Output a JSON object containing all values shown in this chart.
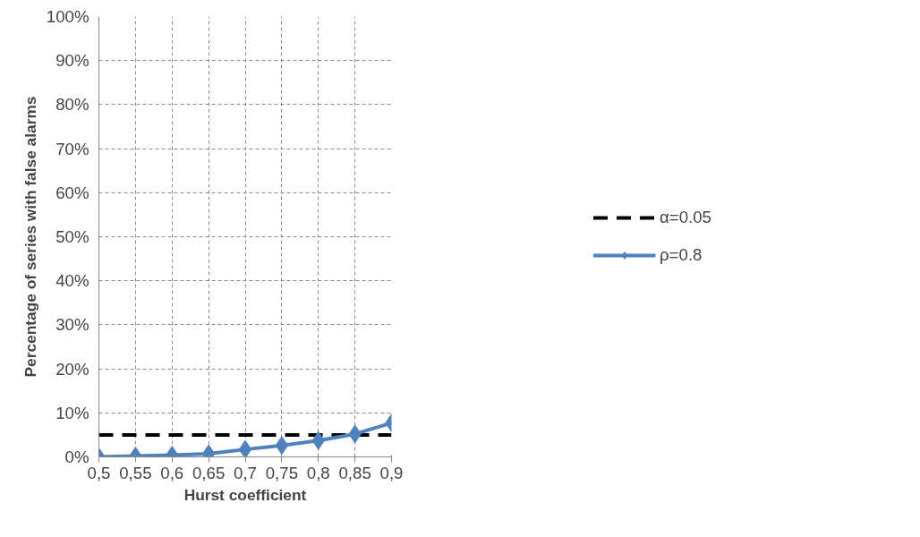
{
  "chart_data": {
    "type": "line",
    "xlabel": "Hurst coefficient",
    "ylabel": "Percentage of series with false alarms",
    "categories": [
      "0,5",
      "0,55",
      "0,6",
      "0,65",
      "0,7",
      "0,75",
      "0,8",
      "0,85",
      "0,9"
    ],
    "ylim": [
      0,
      100
    ],
    "yticks": [
      {
        "value": 0,
        "label": "0%"
      },
      {
        "value": 10,
        "label": "10%"
      },
      {
        "value": 20,
        "label": "20%"
      },
      {
        "value": 30,
        "label": "30%"
      },
      {
        "value": 40,
        "label": "40%"
      },
      {
        "value": 50,
        "label": "50%"
      },
      {
        "value": 60,
        "label": "60%"
      },
      {
        "value": 70,
        "label": "70%"
      },
      {
        "value": 80,
        "label": "80%"
      },
      {
        "value": 90,
        "label": "90%"
      },
      {
        "value": 100,
        "label": "100%"
      }
    ],
    "grid": true,
    "legend": "right",
    "series": [
      {
        "name": "α=0.05",
        "color": "#000000",
        "line_style": "dashed",
        "marker": "none",
        "values": [
          5,
          5,
          5,
          5,
          5,
          5,
          5,
          5,
          5
        ]
      },
      {
        "name": "ρ=0.8",
        "color": "#4f81bd",
        "line_style": "solid",
        "marker": "diamond",
        "values": [
          0,
          0.2,
          0.4,
          0.7,
          1.7,
          2.6,
          3.7,
          5.2,
          7.7
        ]
      }
    ]
  }
}
